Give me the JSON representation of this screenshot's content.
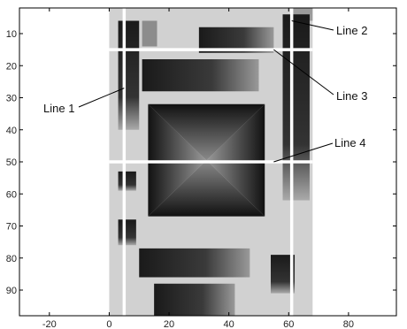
{
  "chart_data": {
    "type": "heatmap",
    "title": "",
    "xlabel": "",
    "ylabel": "",
    "xlim": [
      -30,
      96
    ],
    "ylim": [
      98,
      2
    ],
    "y_axis_reversed": true,
    "x_ticks": [
      -20,
      0,
      20,
      40,
      60,
      80
    ],
    "y_ticks": [
      10,
      20,
      30,
      40,
      50,
      60,
      70,
      80,
      90
    ],
    "grid": false,
    "image_extent": {
      "x": [
        0,
        68
      ],
      "y": [
        2,
        98
      ]
    },
    "background_level": 0.82,
    "features": [
      {
        "kind": "rect",
        "x": [
          3,
          10
        ],
        "y": [
          6,
          40
        ],
        "level": 0.05,
        "note": "left vertical bar"
      },
      {
        "kind": "rect",
        "x": [
          11,
          16
        ],
        "y": [
          6,
          14
        ],
        "level": 0.55
      },
      {
        "kind": "rect",
        "x": [
          30,
          55
        ],
        "y": [
          8,
          16
        ],
        "level": 0.05
      },
      {
        "kind": "rect",
        "x": [
          58,
          67
        ],
        "y": [
          4,
          62
        ],
        "level": 0.05,
        "note": "right vertical bar"
      },
      {
        "kind": "rect",
        "x": [
          11,
          50
        ],
        "y": [
          18,
          28
        ],
        "level": 0.05
      },
      {
        "kind": "pyramid",
        "x": [
          13,
          52
        ],
        "y": [
          32,
          67
        ],
        "level": 0.05,
        "note": "inverted pyramid with crossed diagonals"
      },
      {
        "kind": "rect",
        "x": [
          3,
          9
        ],
        "y": [
          53,
          59
        ],
        "level": 0.05
      },
      {
        "kind": "rect",
        "x": [
          3,
          9
        ],
        "y": [
          68,
          76
        ],
        "level": 0.05
      },
      {
        "kind": "rect",
        "x": [
          10,
          47
        ],
        "y": [
          77,
          86
        ],
        "level": 0.05
      },
      {
        "kind": "rect",
        "x": [
          54,
          62
        ],
        "y": [
          79,
          91
        ],
        "level": 0.05
      },
      {
        "kind": "rect",
        "x": [
          15,
          42
        ],
        "y": [
          88,
          98
        ],
        "level": 0.05
      }
    ],
    "lines": [
      {
        "name": "Line 1",
        "orientation": "vertical",
        "x": 5,
        "y_range": [
          2,
          98
        ]
      },
      {
        "name": "Line 2",
        "orientation": "vertical",
        "x": 61,
        "y_range": [
          2,
          98
        ]
      },
      {
        "name": "Line 3",
        "orientation": "horizontal",
        "y": 15,
        "x_range": [
          0,
          68
        ]
      },
      {
        "name": "Line 4",
        "orientation": "horizontal",
        "y": 50,
        "x_range": [
          0,
          68
        ]
      }
    ],
    "annotations": [
      {
        "label": "Line 1",
        "points_to": {
          "x": 5,
          "y": 27
        }
      },
      {
        "label": "Line 2",
        "points_to": {
          "x": 61,
          "y": 6
        }
      },
      {
        "label": "Line 3",
        "points_to": {
          "x": 55,
          "y": 15
        }
      },
      {
        "label": "Line 4",
        "points_to": {
          "x": 55,
          "y": 50
        }
      }
    ]
  }
}
